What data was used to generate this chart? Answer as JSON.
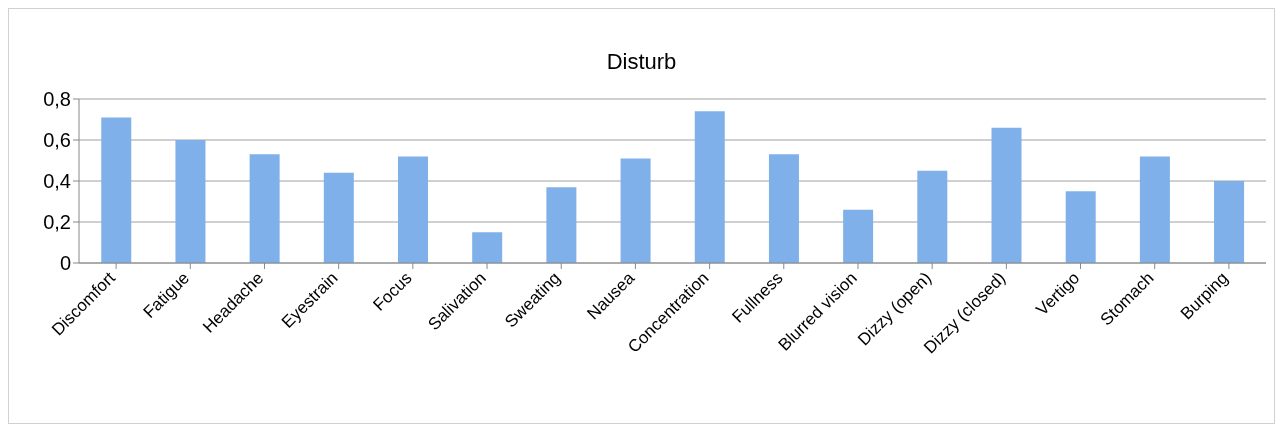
{
  "chart_data": {
    "type": "bar",
    "title": "Disturb",
    "categories": [
      "Discomfort",
      "Fatigue",
      "Headache",
      "Eyestrain",
      "Focus",
      "Salivation",
      "Sweating",
      "Nausea",
      "Concentration",
      "Fullness",
      "Blurred vision",
      "Dizzy (open)",
      "Dizzy (closed)",
      "Vertigo",
      "Stomach",
      "Burping"
    ],
    "values": [
      0.71,
      0.6,
      0.53,
      0.44,
      0.52,
      0.15,
      0.37,
      0.51,
      0.74,
      0.53,
      0.26,
      0.45,
      0.66,
      0.35,
      0.52,
      0.4
    ],
    "color": "#7fb0ea",
    "ylim": [
      0,
      0.8
    ],
    "yticks": [
      0,
      {
        "value": 0.2,
        "label": "0,2"
      },
      {
        "value": 0.4,
        "label": "0,4"
      },
      {
        "value": 0.6,
        "label": "0,6"
      },
      {
        "value": 0.8,
        "label": "0,8"
      }
    ],
    "grid": "y"
  }
}
